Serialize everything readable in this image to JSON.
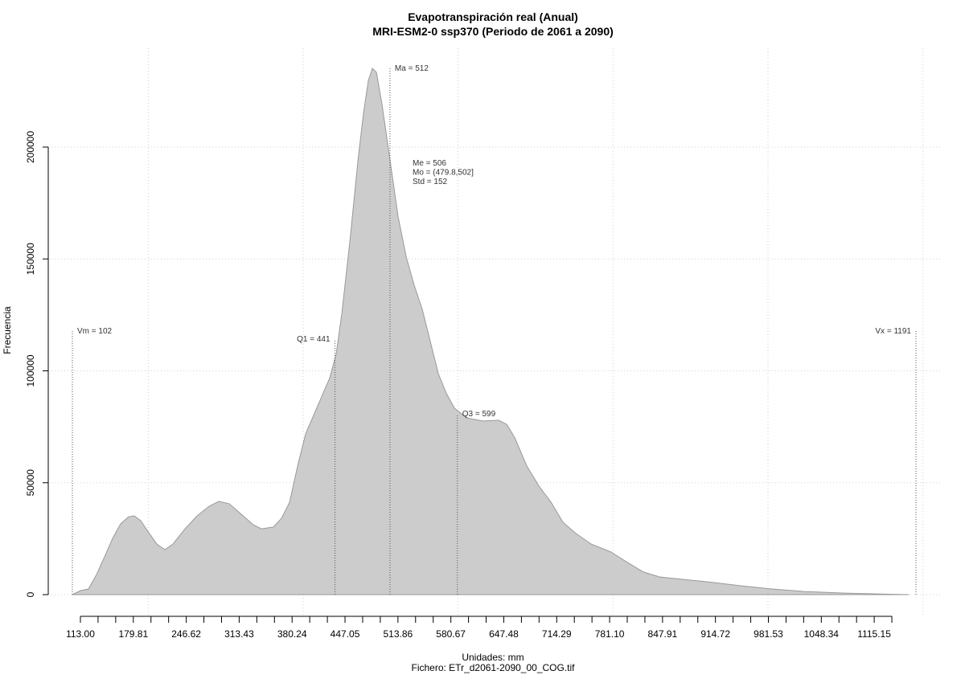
{
  "chart_data": {
    "type": "area",
    "title": "Evapotranspiración real (Anual)",
    "subtitle": "MRI-ESM2-0 ssp370 (Periodo de 2061 a 2090)",
    "x_label": "Unidades: mm",
    "caption": "Fichero: ETr_d2061-2090_00_COG.tif",
    "y_label": "Frecuencia",
    "color": "#cccccc",
    "line_color": "#999999",
    "x": [
      102,
      112.4,
      122.8,
      133.2,
      143.5,
      153.9,
      164.3,
      174.6,
      182,
      190.3,
      200.7,
      211,
      221.4,
      231.8,
      247.4,
      263,
      278.5,
      291,
      304.5,
      320.1,
      335.6,
      346,
      361.6,
      372,
      382.4,
      392.8,
      403.1,
      418.7,
      434.3,
      442.6,
      449.9,
      460.3,
      470.6,
      477.9,
      484.1,
      489.3,
      494.5,
      501.8,
      512.2,
      522.6,
      533,
      543.3,
      553.7,
      564.1,
      574.5,
      584.9,
      595.3,
      610.8,
      631.6,
      652.4,
      662.8,
      673.2,
      688.7,
      704.3,
      719.9,
      735.4,
      751,
      771.8,
      797.7,
      818.5,
      839.3,
      860.1,
      891.2,
      922.4,
      963.9,
      1005.4,
      1047,
      1098.9,
      1150.8,
      1182
    ],
    "values": [
      0,
      1800,
      2500,
      9000,
      16900,
      25100,
      31600,
      34800,
      35200,
      33000,
      27600,
      22600,
      20100,
      22600,
      29400,
      35200,
      39500,
      41700,
      40600,
      35900,
      31200,
      29400,
      30200,
      34100,
      41300,
      57500,
      71800,
      84400,
      96900,
      107700,
      125700,
      158000,
      193900,
      215400,
      229800,
      235200,
      233400,
      219000,
      193900,
      168800,
      150800,
      138200,
      127500,
      113100,
      98700,
      89800,
      83300,
      79000,
      77600,
      77900,
      76100,
      70000,
      57500,
      48500,
      41300,
      32300,
      27600,
      22600,
      19000,
      14400,
      10100,
      7900,
      6800,
      5700,
      4000,
      2500,
      1400,
      700,
      200,
      0
    ],
    "xlim": [
      70.85,
      1223.2
    ],
    "ylim": [
      -10054,
      244165
    ],
    "yticks": [
      0,
      50000,
      100000,
      150000,
      200000
    ],
    "xgrid": [
      200,
      400,
      600,
      800,
      1000,
      1200
    ],
    "grid": true,
    "tick_axis": {
      "lim": [
        72.4,
        1199.3
      ],
      "ticks": [
        {
          "value": 113.0,
          "label": "113.00"
        },
        {
          "value": 179.81,
          "label": "179.81"
        },
        {
          "value": 246.62,
          "label": "246.62"
        },
        {
          "value": 313.43,
          "label": "313.43"
        },
        {
          "value": 380.24,
          "label": "380.24"
        },
        {
          "value": 447.05,
          "label": "447.05"
        },
        {
          "value": 513.86,
          "label": "513.86"
        },
        {
          "value": 580.67,
          "label": "580.67"
        },
        {
          "value": 647.48,
          "label": "647.48"
        },
        {
          "value": 714.29,
          "label": "714.29"
        },
        {
          "value": 781.1,
          "label": "781.10"
        },
        {
          "value": 847.91,
          "label": "847.91"
        },
        {
          "value": 914.72,
          "label": "914.72"
        },
        {
          "value": 981.53,
          "label": "981.53"
        },
        {
          "value": 1048.34,
          "label": "1048.34"
        },
        {
          "value": 1115.15,
          "label": "1115.15"
        }
      ],
      "minor_ticks": [
        113.0,
        135.27,
        157.54,
        179.81,
        202.08,
        224.35,
        246.62,
        268.89,
        291.16,
        313.43,
        335.7,
        357.97,
        380.24,
        402.51,
        424.78,
        447.05,
        469.32,
        491.59,
        513.86,
        536.13,
        558.4,
        580.67,
        602.94,
        625.21,
        647.48,
        669.75,
        692.02,
        714.29,
        736.56,
        758.83,
        781.1,
        803.37,
        825.64,
        847.91,
        870.18,
        892.45,
        914.72,
        936.99,
        959.26,
        981.53,
        1003.8,
        1026.07,
        1048.34,
        1070.61,
        1092.88,
        1115.15,
        1137.42
      ]
    },
    "annotations": [
      {
        "label": "Vm = 102",
        "value": 102
      },
      {
        "label": "Q1 = 441",
        "value": 441
      },
      {
        "label": "Ma = 512",
        "value": 512
      },
      {
        "label": "Q3 = 599",
        "value": 599
      },
      {
        "label": "Vx = 1191",
        "value": 1191
      }
    ],
    "stats_text": [
      "Me = 506",
      "Mo = (479.8,502]",
      "Std = 152"
    ]
  }
}
